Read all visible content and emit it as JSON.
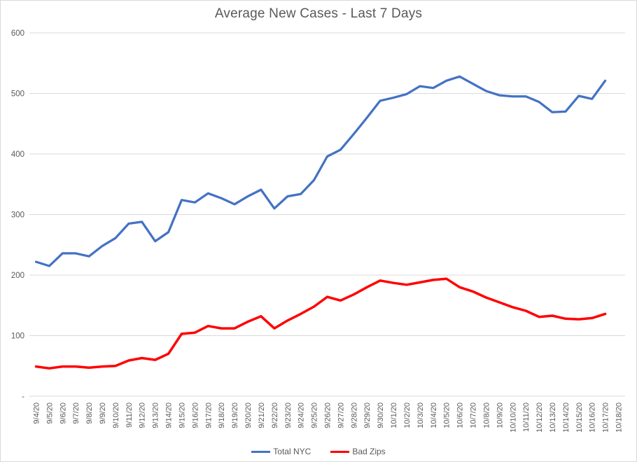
{
  "title": "Average New Cases - Last 7 Days",
  "chart_data": {
    "type": "line",
    "title": "Average New Cases - Last 7 Days",
    "xlabel": "",
    "ylabel": "",
    "ylim": [
      0,
      600
    ],
    "grid": "horizontal",
    "legend_position": "bottom",
    "yticks": [
      {
        "value": 600,
        "label": "600"
      },
      {
        "value": 500,
        "label": "500"
      },
      {
        "value": 400,
        "label": "400"
      },
      {
        "value": 300,
        "label": "300"
      },
      {
        "value": 200,
        "label": "200"
      },
      {
        "value": 100,
        "label": "100"
      },
      {
        "value": 0,
        "label": "-"
      }
    ],
    "categories": [
      "9/4/20",
      "9/5/20",
      "9/6/20",
      "9/7/20",
      "9/8/20",
      "9/9/20",
      "9/10/20",
      "9/11/20",
      "9/12/20",
      "9/13/20",
      "9/14/20",
      "9/15/20",
      "9/16/20",
      "9/17/20",
      "9/18/20",
      "9/19/20",
      "9/20/20",
      "9/21/20",
      "9/22/20",
      "9/23/20",
      "9/24/20",
      "9/25/20",
      "9/26/20",
      "9/27/20",
      "9/28/20",
      "9/29/20",
      "9/30/20",
      "10/1/20",
      "10/2/20",
      "10/3/20",
      "10/4/20",
      "10/5/20",
      "10/6/20",
      "10/7/20",
      "10/8/20",
      "10/9/20",
      "10/10/20",
      "10/11/20",
      "10/12/20",
      "10/13/20",
      "10/14/20",
      "10/15/20",
      "10/16/20",
      "10/17/20",
      "10/18/20"
    ],
    "series": [
      {
        "name": "Total NYC",
        "color": "#4472c4",
        "stroke_width": 3.25,
        "values": [
          222,
          215,
          236,
          236,
          231,
          248,
          261,
          285,
          288,
          256,
          271,
          324,
          320,
          335,
          327,
          317,
          330,
          341,
          310,
          330,
          334,
          357,
          396,
          407,
          433,
          460,
          488,
          493,
          499,
          512,
          509,
          521,
          528,
          516,
          504,
          497,
          495,
          495,
          486,
          469,
          470,
          496,
          491,
          521,
          null
        ]
      },
      {
        "name": "Bad Zips",
        "color": "#ff0000",
        "stroke_width": 3.5,
        "values": [
          49,
          46,
          49,
          49,
          47,
          49,
          50,
          59,
          63,
          60,
          70,
          103,
          105,
          116,
          112,
          112,
          123,
          132,
          112,
          125,
          136,
          148,
          164,
          158,
          168,
          180,
          191,
          187,
          184,
          188,
          192,
          194,
          180,
          173,
          163,
          155,
          147,
          141,
          131,
          133,
          128,
          127,
          129,
          136,
          null
        ]
      }
    ],
    "colors": {
      "gridline": "#d9d9d9",
      "axis_text": "#595959",
      "title_text": "#595959",
      "border": "#d9d9d9",
      "background": "#ffffff"
    }
  }
}
